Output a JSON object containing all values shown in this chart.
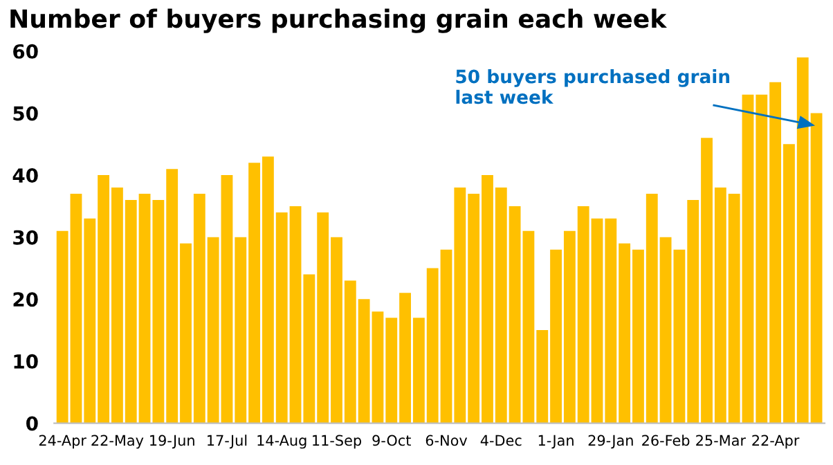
{
  "chart_data": {
    "type": "bar",
    "title": "Number of buyers purchasing grain each week",
    "categories": [
      "24-Apr",
      null,
      null,
      null,
      "22-May",
      null,
      null,
      null,
      "19-Jun",
      null,
      null,
      null,
      "17-Jul",
      null,
      null,
      null,
      "14-Aug",
      null,
      null,
      null,
      "11-Sep",
      null,
      null,
      null,
      "9-Oct",
      null,
      null,
      null,
      "6-Nov",
      null,
      null,
      null,
      "4-Dec",
      null,
      null,
      null,
      "1-Jan",
      null,
      null,
      null,
      "29-Jan",
      null,
      null,
      null,
      "26-Feb",
      null,
      null,
      null,
      "25-Mar",
      null,
      null,
      null,
      "22-Apr",
      null,
      null,
      null
    ],
    "values": [
      31,
      37,
      33,
      40,
      38,
      36,
      37,
      36,
      41,
      29,
      37,
      30,
      40,
      30,
      42,
      43,
      34,
      35,
      24,
      34,
      30,
      23,
      20,
      18,
      17,
      21,
      17,
      25,
      28,
      38,
      37,
      40,
      38,
      35,
      31,
      15,
      28,
      31,
      35,
      33,
      33,
      29,
      28,
      37,
      30,
      28,
      36,
      46,
      38,
      37,
      53,
      53,
      55,
      45,
      59,
      50
    ],
    "color": "#ffc000",
    "ylim": [
      0,
      60
    ],
    "yticks": [
      0,
      10,
      20,
      30,
      40,
      50,
      60
    ],
    "grid": false,
    "legend": false,
    "annotations": [
      "50 buyers purchased grain\nlast week"
    ]
  }
}
